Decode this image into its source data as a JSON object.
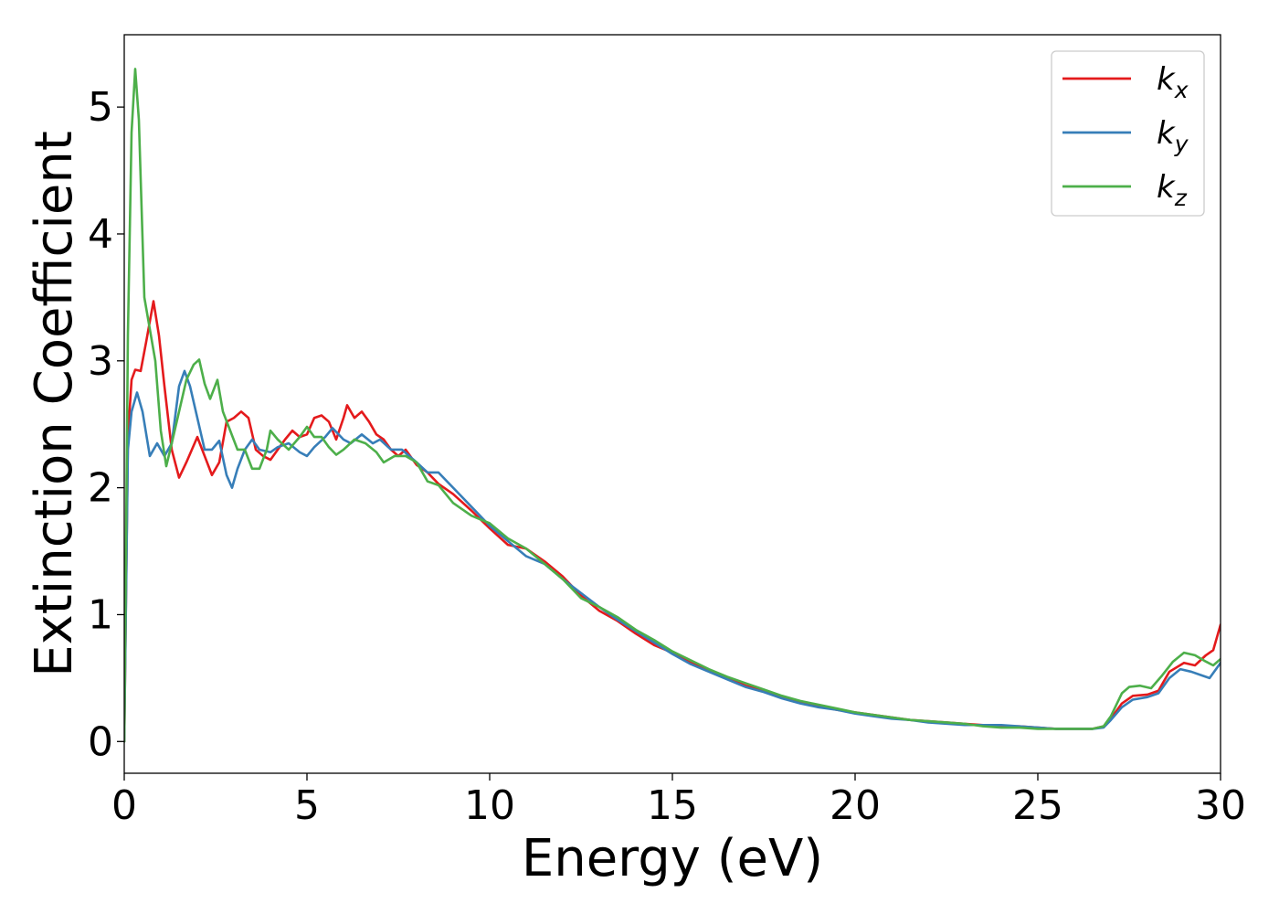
{
  "chart_data": {
    "type": "line",
    "title": "",
    "xlabel": "Energy (eV)",
    "ylabel": "Extinction Coefficient",
    "xlim": [
      0,
      30
    ],
    "ylim": [
      -0.25,
      5.57
    ],
    "xticks": [
      0,
      5,
      10,
      15,
      20,
      25,
      30
    ],
    "yticks": [
      0,
      1,
      2,
      3,
      4,
      5
    ],
    "grid": false,
    "legend_position": "top-right",
    "series": [
      {
        "name": "k_x",
        "label_base": "k",
        "label_sub": "x",
        "color": "#e41a1c",
        "points": [
          [
            0,
            0
          ],
          [
            0.1,
            2.4
          ],
          [
            0.2,
            2.85
          ],
          [
            0.3,
            2.93
          ],
          [
            0.45,
            2.92
          ],
          [
            0.6,
            3.15
          ],
          [
            0.8,
            3.47
          ],
          [
            0.95,
            3.2
          ],
          [
            1.1,
            2.8
          ],
          [
            1.3,
            2.3
          ],
          [
            1.5,
            2.08
          ],
          [
            1.7,
            2.2
          ],
          [
            2.0,
            2.4
          ],
          [
            2.2,
            2.25
          ],
          [
            2.4,
            2.1
          ],
          [
            2.6,
            2.2
          ],
          [
            2.8,
            2.52
          ],
          [
            3.0,
            2.55
          ],
          [
            3.2,
            2.6
          ],
          [
            3.4,
            2.55
          ],
          [
            3.6,
            2.3
          ],
          [
            3.8,
            2.25
          ],
          [
            4.0,
            2.22
          ],
          [
            4.2,
            2.3
          ],
          [
            4.4,
            2.38
          ],
          [
            4.6,
            2.45
          ],
          [
            4.8,
            2.4
          ],
          [
            5.0,
            2.42
          ],
          [
            5.2,
            2.55
          ],
          [
            5.4,
            2.57
          ],
          [
            5.6,
            2.52
          ],
          [
            5.8,
            2.38
          ],
          [
            6.0,
            2.55
          ],
          [
            6.1,
            2.65
          ],
          [
            6.3,
            2.55
          ],
          [
            6.5,
            2.6
          ],
          [
            6.7,
            2.52
          ],
          [
            6.9,
            2.42
          ],
          [
            7.1,
            2.38
          ],
          [
            7.3,
            2.3
          ],
          [
            7.5,
            2.25
          ],
          [
            7.7,
            2.3
          ],
          [
            8.0,
            2.18
          ],
          [
            8.3,
            2.12
          ],
          [
            8.6,
            2.03
          ],
          [
            9.0,
            1.95
          ],
          [
            9.5,
            1.82
          ],
          [
            10.0,
            1.68
          ],
          [
            10.5,
            1.55
          ],
          [
            11.0,
            1.52
          ],
          [
            11.5,
            1.42
          ],
          [
            12.0,
            1.3
          ],
          [
            12.5,
            1.15
          ],
          [
            13.0,
            1.03
          ],
          [
            13.5,
            0.95
          ],
          [
            14.0,
            0.85
          ],
          [
            14.5,
            0.76
          ],
          [
            15.0,
            0.7
          ],
          [
            15.5,
            0.62
          ],
          [
            16.0,
            0.56
          ],
          [
            16.5,
            0.5
          ],
          [
            17.0,
            0.44
          ],
          [
            17.5,
            0.4
          ],
          [
            18.0,
            0.35
          ],
          [
            18.5,
            0.31
          ],
          [
            19.0,
            0.28
          ],
          [
            19.5,
            0.25
          ],
          [
            20.0,
            0.23
          ],
          [
            20.5,
            0.21
          ],
          [
            21.0,
            0.19
          ],
          [
            21.5,
            0.17
          ],
          [
            22.0,
            0.16
          ],
          [
            22.5,
            0.15
          ],
          [
            23.0,
            0.14
          ],
          [
            23.5,
            0.13
          ],
          [
            24.0,
            0.12
          ],
          [
            24.5,
            0.12
          ],
          [
            25.0,
            0.11
          ],
          [
            25.5,
            0.1
          ],
          [
            26.0,
            0.1
          ],
          [
            26.5,
            0.1
          ],
          [
            26.8,
            0.12
          ],
          [
            27.0,
            0.18
          ],
          [
            27.3,
            0.3
          ],
          [
            27.6,
            0.36
          ],
          [
            28.0,
            0.37
          ],
          [
            28.3,
            0.4
          ],
          [
            28.6,
            0.55
          ],
          [
            29.0,
            0.62
          ],
          [
            29.3,
            0.6
          ],
          [
            29.6,
            0.68
          ],
          [
            29.8,
            0.72
          ],
          [
            30.0,
            0.92
          ]
        ]
      },
      {
        "name": "k_y",
        "label_base": "k",
        "label_sub": "y",
        "color": "#377eb8",
        "points": [
          [
            0,
            0
          ],
          [
            0.1,
            2.3
          ],
          [
            0.2,
            2.6
          ],
          [
            0.35,
            2.75
          ],
          [
            0.5,
            2.6
          ],
          [
            0.7,
            2.25
          ],
          [
            0.9,
            2.35
          ],
          [
            1.1,
            2.25
          ],
          [
            1.3,
            2.35
          ],
          [
            1.5,
            2.8
          ],
          [
            1.65,
            2.92
          ],
          [
            1.8,
            2.8
          ],
          [
            2.0,
            2.55
          ],
          [
            2.2,
            2.3
          ],
          [
            2.4,
            2.3
          ],
          [
            2.6,
            2.37
          ],
          [
            2.8,
            2.1
          ],
          [
            2.95,
            2.0
          ],
          [
            3.1,
            2.15
          ],
          [
            3.3,
            2.3
          ],
          [
            3.5,
            2.38
          ],
          [
            3.7,
            2.3
          ],
          [
            4.0,
            2.28
          ],
          [
            4.2,
            2.32
          ],
          [
            4.5,
            2.35
          ],
          [
            4.8,
            2.28
          ],
          [
            5.0,
            2.25
          ],
          [
            5.2,
            2.32
          ],
          [
            5.5,
            2.4
          ],
          [
            5.7,
            2.47
          ],
          [
            6.0,
            2.38
          ],
          [
            6.2,
            2.35
          ],
          [
            6.5,
            2.42
          ],
          [
            6.8,
            2.35
          ],
          [
            7.0,
            2.38
          ],
          [
            7.3,
            2.3
          ],
          [
            7.6,
            2.3
          ],
          [
            8.0,
            2.2
          ],
          [
            8.3,
            2.12
          ],
          [
            8.6,
            2.12
          ],
          [
            9.0,
            2.0
          ],
          [
            9.5,
            1.85
          ],
          [
            10.0,
            1.7
          ],
          [
            10.5,
            1.58
          ],
          [
            11.0,
            1.46
          ],
          [
            11.5,
            1.4
          ],
          [
            12.0,
            1.28
          ],
          [
            12.5,
            1.17
          ],
          [
            13.0,
            1.06
          ],
          [
            13.5,
            0.96
          ],
          [
            14.0,
            0.87
          ],
          [
            14.5,
            0.78
          ],
          [
            15.0,
            0.69
          ],
          [
            15.5,
            0.61
          ],
          [
            16.0,
            0.55
          ],
          [
            16.5,
            0.49
          ],
          [
            17.0,
            0.43
          ],
          [
            17.5,
            0.39
          ],
          [
            18.0,
            0.34
          ],
          [
            18.5,
            0.3
          ],
          [
            19.0,
            0.27
          ],
          [
            19.5,
            0.25
          ],
          [
            20.0,
            0.22
          ],
          [
            20.5,
            0.2
          ],
          [
            21.0,
            0.18
          ],
          [
            21.5,
            0.17
          ],
          [
            22.0,
            0.15
          ],
          [
            22.5,
            0.14
          ],
          [
            23.0,
            0.13
          ],
          [
            23.5,
            0.13
          ],
          [
            24.0,
            0.13
          ],
          [
            24.5,
            0.12
          ],
          [
            25.0,
            0.11
          ],
          [
            25.5,
            0.1
          ],
          [
            26.0,
            0.1
          ],
          [
            26.5,
            0.1
          ],
          [
            26.8,
            0.11
          ],
          [
            27.0,
            0.17
          ],
          [
            27.3,
            0.27
          ],
          [
            27.6,
            0.33
          ],
          [
            28.0,
            0.35
          ],
          [
            28.3,
            0.38
          ],
          [
            28.6,
            0.5
          ],
          [
            28.9,
            0.57
          ],
          [
            29.2,
            0.55
          ],
          [
            29.5,
            0.52
          ],
          [
            29.7,
            0.5
          ],
          [
            30.0,
            0.62
          ]
        ]
      },
      {
        "name": "k_z",
        "label_base": "k",
        "label_sub": "z",
        "color": "#4daf4a",
        "points": [
          [
            0,
            0
          ],
          [
            0.1,
            3.2
          ],
          [
            0.2,
            4.8
          ],
          [
            0.3,
            5.3
          ],
          [
            0.4,
            4.9
          ],
          [
            0.55,
            3.5
          ],
          [
            0.7,
            3.25
          ],
          [
            0.85,
            3.0
          ],
          [
            1.0,
            2.45
          ],
          [
            1.15,
            2.17
          ],
          [
            1.3,
            2.35
          ],
          [
            1.5,
            2.6
          ],
          [
            1.7,
            2.85
          ],
          [
            1.9,
            2.97
          ],
          [
            2.05,
            3.01
          ],
          [
            2.2,
            2.82
          ],
          [
            2.35,
            2.7
          ],
          [
            2.55,
            2.85
          ],
          [
            2.7,
            2.6
          ],
          [
            2.9,
            2.45
          ],
          [
            3.1,
            2.3
          ],
          [
            3.3,
            2.3
          ],
          [
            3.5,
            2.15
          ],
          [
            3.7,
            2.15
          ],
          [
            3.9,
            2.3
          ],
          [
            4.0,
            2.45
          ],
          [
            4.2,
            2.38
          ],
          [
            4.5,
            2.3
          ],
          [
            4.8,
            2.4
          ],
          [
            5.0,
            2.48
          ],
          [
            5.2,
            2.4
          ],
          [
            5.4,
            2.4
          ],
          [
            5.6,
            2.32
          ],
          [
            5.8,
            2.26
          ],
          [
            6.0,
            2.3
          ],
          [
            6.3,
            2.38
          ],
          [
            6.6,
            2.35
          ],
          [
            6.9,
            2.28
          ],
          [
            7.1,
            2.2
          ],
          [
            7.4,
            2.25
          ],
          [
            7.7,
            2.25
          ],
          [
            8.0,
            2.2
          ],
          [
            8.3,
            2.05
          ],
          [
            8.6,
            2.02
          ],
          [
            9.0,
            1.88
          ],
          [
            9.5,
            1.78
          ],
          [
            10.0,
            1.72
          ],
          [
            10.5,
            1.6
          ],
          [
            11.0,
            1.52
          ],
          [
            11.5,
            1.4
          ],
          [
            12.0,
            1.28
          ],
          [
            12.5,
            1.13
          ],
          [
            13.0,
            1.06
          ],
          [
            13.5,
            0.98
          ],
          [
            14.0,
            0.88
          ],
          [
            14.5,
            0.8
          ],
          [
            15.0,
            0.71
          ],
          [
            15.5,
            0.64
          ],
          [
            16.0,
            0.57
          ],
          [
            16.5,
            0.51
          ],
          [
            17.0,
            0.46
          ],
          [
            17.5,
            0.41
          ],
          [
            18.0,
            0.36
          ],
          [
            18.5,
            0.32
          ],
          [
            19.0,
            0.29
          ],
          [
            19.5,
            0.26
          ],
          [
            20.0,
            0.23
          ],
          [
            20.5,
            0.21
          ],
          [
            21.0,
            0.19
          ],
          [
            21.5,
            0.17
          ],
          [
            22.0,
            0.16
          ],
          [
            22.5,
            0.15
          ],
          [
            23.0,
            0.14
          ],
          [
            23.5,
            0.12
          ],
          [
            24.0,
            0.11
          ],
          [
            24.5,
            0.11
          ],
          [
            25.0,
            0.1
          ],
          [
            25.5,
            0.1
          ],
          [
            26.0,
            0.1
          ],
          [
            26.5,
            0.1
          ],
          [
            26.8,
            0.12
          ],
          [
            27.0,
            0.2
          ],
          [
            27.3,
            0.38
          ],
          [
            27.5,
            0.43
          ],
          [
            27.8,
            0.44
          ],
          [
            28.1,
            0.42
          ],
          [
            28.4,
            0.52
          ],
          [
            28.7,
            0.63
          ],
          [
            29.0,
            0.7
          ],
          [
            29.3,
            0.68
          ],
          [
            29.6,
            0.63
          ],
          [
            29.8,
            0.6
          ],
          [
            30.0,
            0.65
          ]
        ]
      }
    ]
  }
}
